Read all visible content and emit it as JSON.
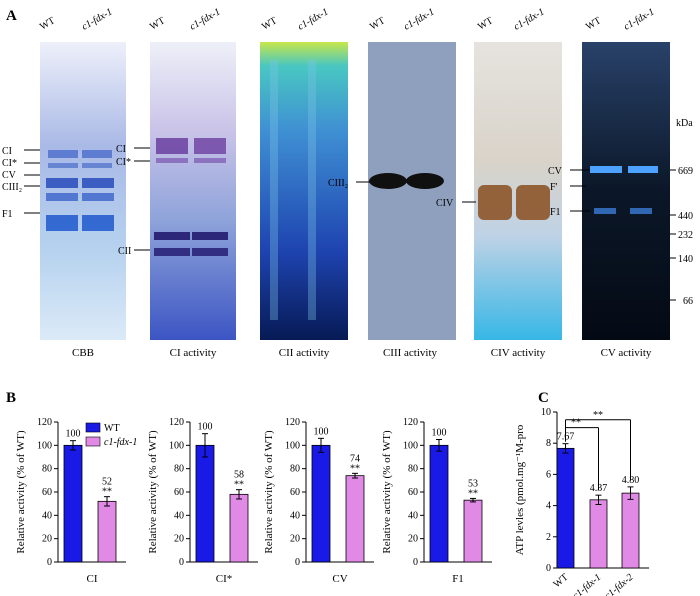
{
  "panel_labels": {
    "a": "A",
    "b": "B",
    "c": "C"
  },
  "colors": {
    "wt": "#1a1ae6",
    "mut": "#e08ae6",
    "gel_blue": "#2a5cc8"
  },
  "panel_a": {
    "lane_labels": {
      "wt": "WT",
      "mut": "c1-fdx-1"
    },
    "gels": [
      {
        "caption": "CBB",
        "markers": [
          "CI",
          "CI*",
          "CV",
          "CIII₂",
          "F1"
        ]
      },
      {
        "caption": "CI activity",
        "markers": [
          "CI",
          "CI*",
          "CII"
        ]
      },
      {
        "caption": "CII activity",
        "markers": []
      },
      {
        "caption": "CIII activity",
        "markers": [
          "CIII₂"
        ]
      },
      {
        "caption": "CIV activity",
        "markers": [
          "CIV"
        ]
      },
      {
        "caption": "CV activity",
        "markers": [
          "CV",
          "F'",
          "F1"
        ]
      }
    ],
    "kda": {
      "unit": "kDa",
      "values": [
        "669",
        "440",
        "232",
        "140",
        "66"
      ]
    }
  },
  "chart_data": [
    {
      "type": "bar",
      "title": "",
      "xlabel": "CI",
      "ylabel": "Relative activity (% of WT)",
      "ylim": [
        0,
        120
      ],
      "yticks": [
        0,
        20,
        40,
        60,
        80,
        100,
        120
      ],
      "categories": [
        "WT",
        "c1-fdx-1"
      ],
      "values": [
        100,
        52
      ],
      "errors": [
        4,
        4
      ],
      "value_labels": [
        "100",
        "52"
      ],
      "sig": [
        "",
        "**"
      ],
      "legend": [
        "WT",
        "c1-fdx-1"
      ]
    },
    {
      "type": "bar",
      "title": "",
      "xlabel": "CI*",
      "ylabel": "Relative activity (% of WT)",
      "ylim": [
        0,
        120
      ],
      "yticks": [
        0,
        20,
        40,
        60,
        80,
        100,
        120
      ],
      "categories": [
        "WT",
        "c1-fdx-1"
      ],
      "values": [
        100,
        58
      ],
      "errors": [
        10,
        4
      ],
      "value_labels": [
        "100",
        "58"
      ],
      "sig": [
        "",
        "**"
      ]
    },
    {
      "type": "bar",
      "title": "",
      "xlabel": "CV",
      "ylabel": "Relative activity (% of WT)",
      "ylim": [
        0,
        120
      ],
      "yticks": [
        0,
        20,
        40,
        60,
        80,
        100,
        120
      ],
      "categories": [
        "WT",
        "c1-fdx-1"
      ],
      "values": [
        100,
        74
      ],
      "errors": [
        6,
        2
      ],
      "value_labels": [
        "100",
        "74"
      ],
      "sig": [
        "",
        "**"
      ]
    },
    {
      "type": "bar",
      "title": "",
      "xlabel": "F1",
      "ylabel": "Relative activity (% of WT)",
      "ylim": [
        0,
        120
      ],
      "yticks": [
        0,
        20,
        40,
        60,
        80,
        100,
        120
      ],
      "categories": [
        "WT",
        "c1-fdx-1"
      ],
      "values": [
        100,
        53
      ],
      "errors": [
        5,
        1.5
      ],
      "value_labels": [
        "100",
        "53"
      ],
      "sig": [
        "",
        "**"
      ]
    },
    {
      "type": "bar",
      "title": "",
      "xlabel": "",
      "ylabel": "ATP levles (pmol.mg⁻¹M-pro",
      "ylim": [
        0,
        10
      ],
      "yticks": [
        0,
        2,
        4,
        6,
        8,
        10
      ],
      "categories": [
        "WT",
        "c1-fdx-1",
        "c1-fdx-2"
      ],
      "values": [
        7.67,
        4.37,
        4.8
      ],
      "errors": [
        0.3,
        0.3,
        0.4
      ],
      "value_labels": [
        "7.67",
        "4.37",
        "4.80"
      ],
      "sig_brackets": [
        "**",
        "**"
      ]
    }
  ]
}
